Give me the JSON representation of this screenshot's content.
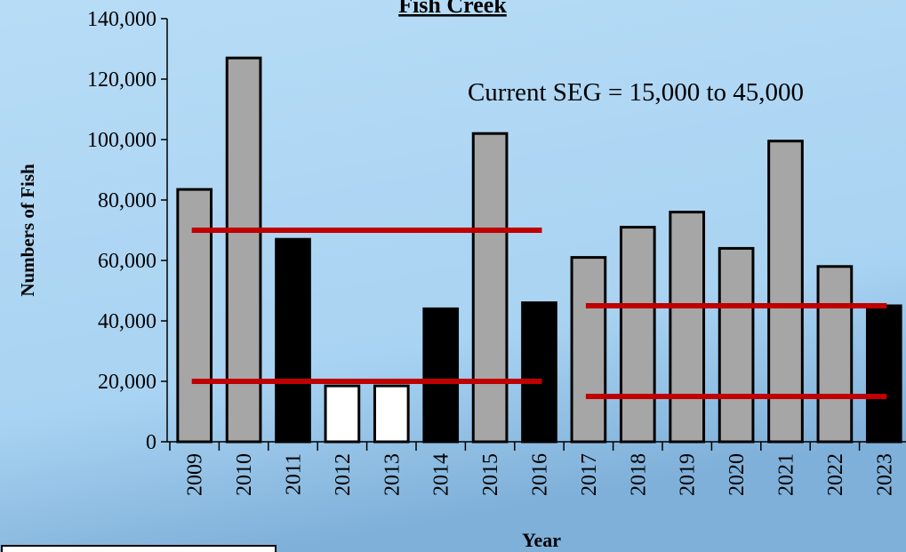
{
  "chart_data": {
    "type": "bar",
    "title": "Fish Creek",
    "annotation": "Current SEG = 15,000 to 45,000",
    "x_label": "Year",
    "y_label": "Numbers of Fish",
    "categories": [
      "2009",
      "2010",
      "2011",
      "2012",
      "2013",
      "2014",
      "2015",
      "2016",
      "2017",
      "2018",
      "2019",
      "2020",
      "2021",
      "2022",
      "2023"
    ],
    "values": [
      83500,
      127000,
      67000,
      18500,
      18500,
      44000,
      102000,
      46000,
      61000,
      71000,
      76000,
      64000,
      99500,
      58000,
      45000
    ],
    "colors": [
      "#a6a6a6",
      "#a6a6a6",
      "#000000",
      "#ffffff",
      "#ffffff",
      "#000000",
      "#a6a6a6",
      "#000000",
      "#a6a6a6",
      "#a6a6a6",
      "#a6a6a6",
      "#a6a6a6",
      "#a6a6a6",
      "#a6a6a6",
      "#000000"
    ],
    "ranges": [
      {
        "first": "2009",
        "last": "2016",
        "values": [
          20000,
          70000
        ],
        "color": "#c00000"
      },
      {
        "first": "2017",
        "last": "2023",
        "values": [
          15000,
          45000
        ],
        "color": "#c00000"
      }
    ],
    "ylim": [
      0,
      140000
    ],
    "yticks": [
      0,
      {
        "value": 20000,
        "label": "20,000"
      },
      {
        "value": 40000,
        "label": "40,000"
      },
      {
        "value": 60000,
        "label": "60,000"
      },
      {
        "value": 80000,
        "label": "80,000"
      },
      {
        "value": 100000,
        "label": "100,000"
      },
      {
        "value": 120000,
        "label": "120,000"
      },
      {
        "value": 140000,
        "label": "140,000"
      }
    ]
  }
}
